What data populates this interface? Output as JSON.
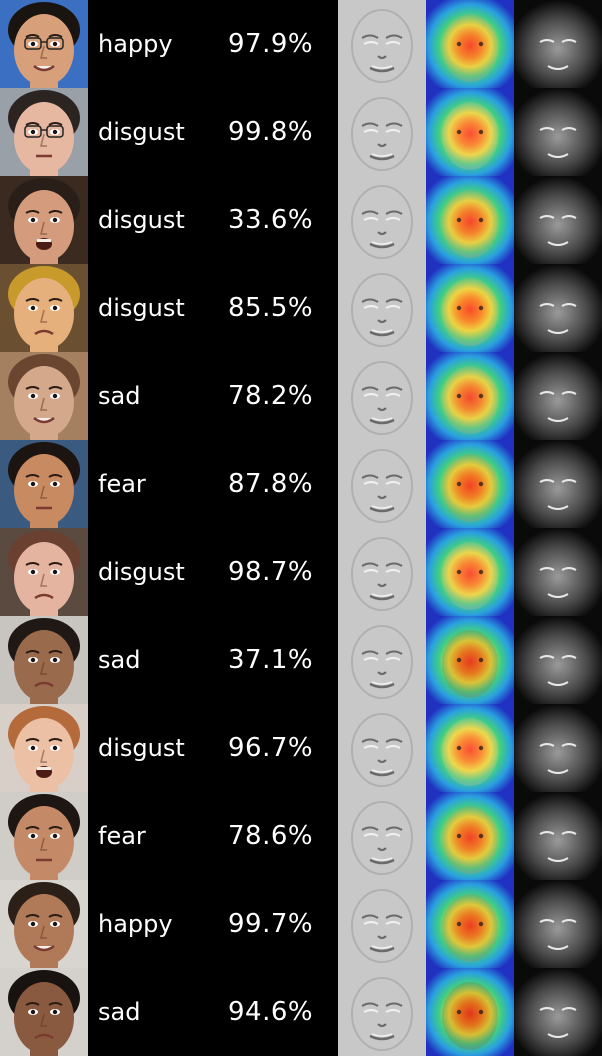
{
  "rows": [
    {
      "emotion": "happy",
      "confidence": "97.9%",
      "skin": "#d8a07a",
      "hair": "#1a1410",
      "bg": "#3a6fc2",
      "glasses": true,
      "mouth": "smile"
    },
    {
      "emotion": "disgust",
      "confidence": "99.8%",
      "skin": "#e6b8a2",
      "hair": "#2b2420",
      "bg": "#9aa0a8",
      "glasses": true,
      "mouth": "neutral"
    },
    {
      "emotion": "disgust",
      "confidence": "33.6%",
      "skin": "#d49c7c",
      "hair": "#2a1f18",
      "bg": "#3a2a20",
      "glasses": false,
      "mouth": "open"
    },
    {
      "emotion": "disgust",
      "confidence": "85.5%",
      "skin": "#e6b07c",
      "hair": "#c89a2c",
      "bg": "#6a5030",
      "glasses": false,
      "mouth": "frown"
    },
    {
      "emotion": "sad",
      "confidence": "78.2%",
      "skin": "#d4a88a",
      "hair": "#6a4630",
      "bg": "#a48060",
      "glasses": false,
      "mouth": "smile"
    },
    {
      "emotion": "fear",
      "confidence": "87.8%",
      "skin": "#c88a60",
      "hair": "#1c1410",
      "bg": "#3a5a80",
      "glasses": false,
      "mouth": "neutral"
    },
    {
      "emotion": "disgust",
      "confidence": "98.7%",
      "skin": "#e4b4a0",
      "hair": "#6a4030",
      "bg": "#5a4a40",
      "glasses": false,
      "mouth": "frown"
    },
    {
      "emotion": "sad",
      "confidence": "37.1%",
      "skin": "#9a6a4c",
      "hair": "#201814",
      "bg": "#c8c4c0",
      "glasses": false,
      "mouth": "frown"
    },
    {
      "emotion": "disgust",
      "confidence": "96.7%",
      "skin": "#ecc0a4",
      "hair": "#b46a3a",
      "bg": "#d8d0c8",
      "glasses": false,
      "mouth": "open"
    },
    {
      "emotion": "fear",
      "confidence": "78.6%",
      "skin": "#c48a68",
      "hair": "#1e1612",
      "bg": "#d0ccc8",
      "glasses": false,
      "mouth": "neutral"
    },
    {
      "emotion": "happy",
      "confidence": "99.7%",
      "skin": "#b07a58",
      "hair": "#2a2018",
      "bg": "#d8d4d0",
      "glasses": false,
      "mouth": "smile"
    },
    {
      "emotion": "sad",
      "confidence": "94.6%",
      "skin": "#8a5a40",
      "hair": "#181210",
      "bg": "#d4d0cc",
      "glasses": false,
      "mouth": "frown"
    }
  ]
}
